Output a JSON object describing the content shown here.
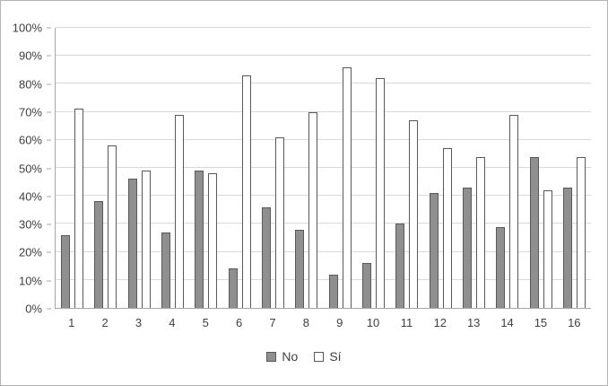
{
  "chart_data": {
    "type": "bar",
    "title": "",
    "xlabel": "",
    "ylabel": "",
    "categories": [
      "1",
      "2",
      "3",
      "4",
      "5",
      "6",
      "7",
      "8",
      "9",
      "10",
      "11",
      "12",
      "13",
      "14",
      "15",
      "16"
    ],
    "series": [
      {
        "name": "No",
        "fill_color": "#8f8f8f",
        "border_color": "#595959",
        "values": [
          26,
          38,
          46,
          27,
          49,
          14,
          36,
          28,
          12,
          16,
          30,
          41,
          43,
          29,
          54,
          43
        ]
      },
      {
        "name": "Sí",
        "fill_color": "#ffffff",
        "border_color": "#595959",
        "values": [
          71,
          58,
          49,
          69,
          48,
          83,
          61,
          70,
          86,
          82,
          67,
          57,
          54,
          69,
          42,
          54
        ]
      }
    ],
    "ylim": [
      0,
      100
    ],
    "ytick_labels": [
      "0%",
      "10%",
      "20%",
      "30%",
      "40%",
      "50%",
      "60%",
      "70%",
      "80%",
      "90%",
      "100%"
    ],
    "grid": "horizontal",
    "gridline_color": "#d9d9d9",
    "axis_color": "#a6a6a6",
    "legend_position": "bottom"
  }
}
